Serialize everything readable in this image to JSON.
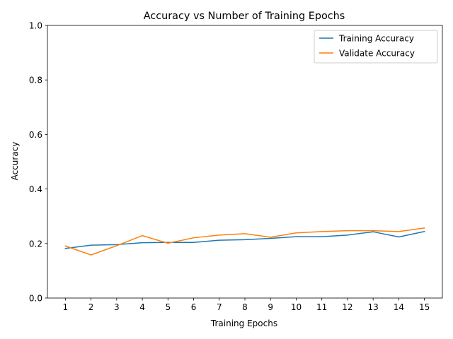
{
  "chart_data": {
    "type": "line",
    "title": "Accuracy vs Number of Training Epochs",
    "xlabel": "Training Epochs",
    "ylabel": "Accuracy",
    "x": [
      1,
      2,
      3,
      4,
      5,
      6,
      7,
      8,
      9,
      10,
      11,
      12,
      13,
      14,
      15
    ],
    "xtick_labels": [
      "1",
      "2",
      "3",
      "4",
      "5",
      "6",
      "7",
      "8",
      "9",
      "10",
      "11",
      "12",
      "13",
      "14",
      "15"
    ],
    "ylim": [
      0.0,
      1.0
    ],
    "yticks": [
      0.0,
      0.2,
      0.4,
      0.6,
      0.8,
      1.0
    ],
    "ytick_labels": [
      "0.0",
      "0.2",
      "0.4",
      "0.6",
      "0.8",
      "1.0"
    ],
    "grid": false,
    "legend_position": "top-right",
    "series": [
      {
        "name": "Training Accuracy",
        "color": "#1f77b4",
        "values": [
          0.182,
          0.194,
          0.196,
          0.203,
          0.204,
          0.204,
          0.212,
          0.214,
          0.219,
          0.225,
          0.225,
          0.231,
          0.243,
          0.224,
          0.244
        ]
      },
      {
        "name": "Validate Accuracy",
        "color": "#ff7f0e",
        "values": [
          0.191,
          0.158,
          0.192,
          0.229,
          0.201,
          0.221,
          0.231,
          0.236,
          0.223,
          0.239,
          0.244,
          0.247,
          0.247,
          0.244,
          0.257
        ]
      }
    ]
  }
}
